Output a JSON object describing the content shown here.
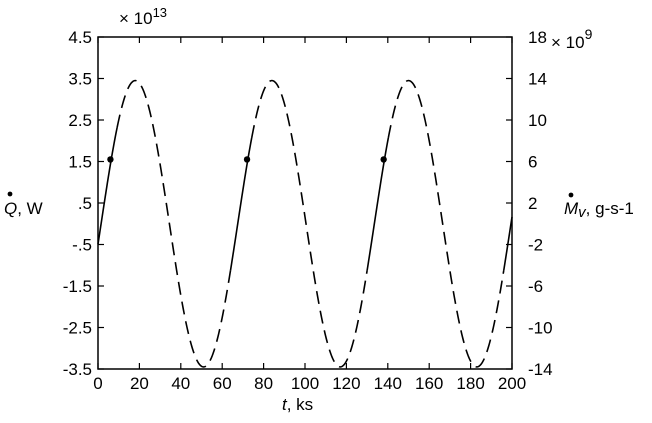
{
  "chart_data": {
    "type": "line",
    "x_range": [
      0,
      200
    ],
    "x_ticks": [
      "0",
      "20",
      "40",
      "60",
      "80",
      "100",
      "120",
      "140",
      "160",
      "180",
      "200"
    ],
    "xlabel_symbol": "t",
    "xlabel_unit": ", ks",
    "left_axis": {
      "range": [
        -3.5,
        4.5
      ],
      "ticks": [
        "4.5",
        "3.5",
        "2.5",
        "1.5",
        ".5",
        "-.5",
        "-1.5",
        "-2.5",
        "-3.5"
      ],
      "tick_values": [
        4.5,
        3.5,
        2.5,
        1.5,
        0.5,
        -0.5,
        -1.5,
        -2.5,
        -3.5
      ],
      "multiplier": "× 10",
      "multiplier_exp": "13",
      "label_symbol": "Q",
      "label_unit": ", W"
    },
    "right_axis": {
      "range": [
        -14,
        18
      ],
      "ticks": [
        "18",
        "14",
        "10",
        "6",
        "2",
        "-2",
        "-6",
        "-10",
        "-14"
      ],
      "tick_values": [
        18,
        14,
        10,
        6,
        2,
        -2,
        -6,
        -10,
        -14
      ],
      "multiplier": "× 10",
      "multiplier_exp": "9",
      "label_symbol": "M",
      "label_subscript": "v",
      "label_unit": ", g-s-1"
    },
    "curve": {
      "function": "sinusoid",
      "amplitude": 3.45,
      "period_ks": 66,
      "phase_ks": 1.5,
      "offset": 0,
      "solid_segments": [
        [
          0,
          9
        ],
        [
          64,
          74
        ],
        [
          130,
          140
        ],
        [
          196,
          200
        ]
      ],
      "dashed_style": "long-dash"
    },
    "markers": [
      {
        "x": 6,
        "y": 1.55
      },
      {
        "x": 72,
        "y": 1.55
      },
      {
        "x": 138,
        "y": 1.55
      }
    ]
  }
}
